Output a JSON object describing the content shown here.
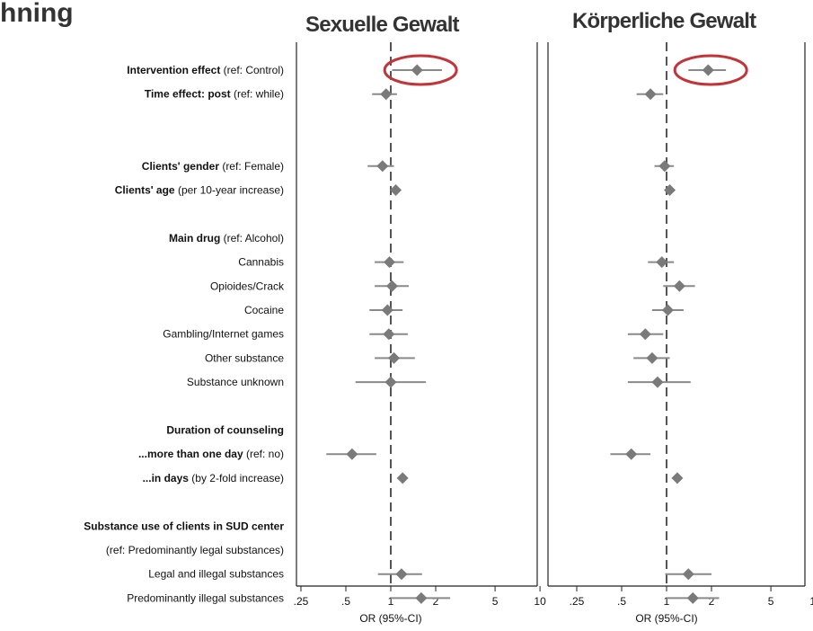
{
  "header_fragment": "hning",
  "chart_data": {
    "type": "forest",
    "x_scale": "log",
    "x_ticks": [
      {
        "value": 0.25,
        "label": ".25"
      },
      {
        "value": 0.5,
        "label": ".5"
      },
      {
        "value": 1,
        "label": "1"
      },
      {
        "value": 2,
        "label": "2"
      },
      {
        "value": 5,
        "label": "5"
      },
      {
        "value": 10,
        "label": "10"
      }
    ],
    "xlim": [
      0.17,
      13
    ],
    "reference_line": 1,
    "xlabel": "OR (95%-CI)",
    "rows": [
      {
        "bold": "Intervention effect",
        "rest": " (ref: Control)",
        "indent": false
      },
      {
        "bold": "Time effect: post",
        "rest": " (ref: while)",
        "indent": false
      },
      {
        "bold": "",
        "rest": "",
        "indent": false
      },
      {
        "bold": "",
        "rest": "",
        "indent": false
      },
      {
        "bold": "Clients' gender",
        "rest": " (ref: Female)",
        "indent": false
      },
      {
        "bold": "Clients' age",
        "rest": " (per 10-year increase)",
        "indent": false
      },
      {
        "bold": "",
        "rest": "",
        "indent": false
      },
      {
        "bold": "Main drug",
        "rest": " (ref: Alcohol)",
        "indent": false
      },
      {
        "bold": "",
        "rest": "Cannabis",
        "indent": false
      },
      {
        "bold": "",
        "rest": "Opioides/Crack",
        "indent": false
      },
      {
        "bold": "",
        "rest": "Cocaine",
        "indent": false
      },
      {
        "bold": "",
        "rest": "Gambling/Internet games",
        "indent": false
      },
      {
        "bold": "",
        "rest": "Other substance",
        "indent": false
      },
      {
        "bold": "",
        "rest": "Substance unknown",
        "indent": false
      },
      {
        "bold": "",
        "rest": "",
        "indent": false
      },
      {
        "bold": "Duration of counseling",
        "rest": "",
        "indent": false
      },
      {
        "bold": "...more than one day",
        "rest": " (ref: no)",
        "indent": false
      },
      {
        "bold": "...in days",
        "rest": " (by 2-fold increase)",
        "indent": false
      },
      {
        "bold": "",
        "rest": "",
        "indent": false
      },
      {
        "bold": "Substance use of clients in SUD center",
        "rest": "",
        "indent": false
      },
      {
        "bold": "",
        "rest": "(ref: Predominantly legal substances)",
        "indent": false
      },
      {
        "bold": "",
        "rest": "Legal and illegal substances",
        "indent": false
      },
      {
        "bold": "",
        "rest": "Predominantly illegal substances",
        "indent": false
      }
    ],
    "panels": [
      {
        "title": "Sexuelle Gewalt",
        "highlighted_row": 0,
        "estimates": [
          {
            "row": 0,
            "or": 1.5,
            "lo": 1.02,
            "hi": 2.2
          },
          {
            "row": 1,
            "or": 0.93,
            "lo": 0.75,
            "hi": 1.1
          },
          {
            "row": 4,
            "or": 0.88,
            "lo": 0.7,
            "hi": 1.05
          },
          {
            "row": 5,
            "or": 1.08,
            "lo": 1.02,
            "hi": 1.14
          },
          {
            "row": 8,
            "or": 0.98,
            "lo": 0.78,
            "hi": 1.22
          },
          {
            "row": 9,
            "or": 1.02,
            "lo": 0.78,
            "hi": 1.32
          },
          {
            "row": 10,
            "or": 0.95,
            "lo": 0.72,
            "hi": 1.2
          },
          {
            "row": 11,
            "or": 0.97,
            "lo": 0.72,
            "hi": 1.3
          },
          {
            "row": 12,
            "or": 1.05,
            "lo": 0.78,
            "hi": 1.45
          },
          {
            "row": 13,
            "or": 1.0,
            "lo": 0.58,
            "hi": 1.72
          },
          {
            "row": 16,
            "or": 0.55,
            "lo": 0.37,
            "hi": 0.8
          },
          {
            "row": 17,
            "or": 1.2,
            "lo": 1.12,
            "hi": 1.28
          },
          {
            "row": 21,
            "or": 1.18,
            "lo": 0.82,
            "hi": 1.62
          },
          {
            "row": 22,
            "or": 1.6,
            "lo": 1.0,
            "hi": 2.5
          }
        ]
      },
      {
        "title": "Körperliche Gewalt",
        "highlighted_row": 0,
        "estimates": [
          {
            "row": 0,
            "or": 1.9,
            "lo": 1.4,
            "hi": 2.5
          },
          {
            "row": 1,
            "or": 0.78,
            "lo": 0.63,
            "hi": 0.95
          },
          {
            "row": 4,
            "or": 0.97,
            "lo": 0.83,
            "hi": 1.12
          },
          {
            "row": 5,
            "or": 1.05,
            "lo": 1.0,
            "hi": 1.1
          },
          {
            "row": 8,
            "or": 0.93,
            "lo": 0.75,
            "hi": 1.12
          },
          {
            "row": 9,
            "or": 1.22,
            "lo": 0.95,
            "hi": 1.55
          },
          {
            "row": 10,
            "or": 1.02,
            "lo": 0.8,
            "hi": 1.3
          },
          {
            "row": 11,
            "or": 0.72,
            "lo": 0.55,
            "hi": 0.95
          },
          {
            "row": 12,
            "or": 0.8,
            "lo": 0.6,
            "hi": 1.05
          },
          {
            "row": 13,
            "or": 0.87,
            "lo": 0.55,
            "hi": 1.45
          },
          {
            "row": 16,
            "or": 0.58,
            "lo": 0.42,
            "hi": 0.78
          },
          {
            "row": 17,
            "or": 1.18,
            "lo": 1.1,
            "hi": 1.25
          },
          {
            "row": 21,
            "or": 1.4,
            "lo": 0.98,
            "hi": 2.0
          },
          {
            "row": 22,
            "or": 1.5,
            "lo": 1.0,
            "hi": 2.25
          }
        ]
      }
    ]
  },
  "colors": {
    "axis": "#222222",
    "estimate": "#7a7a7a",
    "ci": "#8a8a8a",
    "reference_line": "#555555",
    "highlight": "#c0353a",
    "title": "#333333"
  }
}
